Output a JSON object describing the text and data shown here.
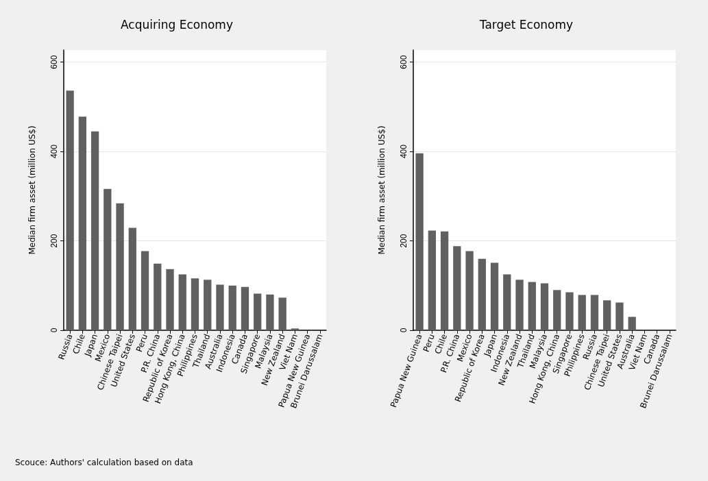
{
  "chart_data": [
    {
      "type": "bar",
      "title": "Acquiring Economy",
      "ylabel": "Median firm asset (million US$)",
      "categories": [
        "Russia",
        "Chile",
        "Japan",
        "Mexico",
        "Chinese Taipei",
        "United States",
        "Peru",
        "P.R. China",
        "Republic of Korea",
        "Hong Kong, China",
        "Philippines",
        "Thailand",
        "Australia",
        "Indonesia",
        "Canada",
        "Singapore",
        "Malaysia",
        "New Zealand",
        "Viet Nam",
        "Papua New Guinea",
        "Brunei Darussalam"
      ],
      "values": [
        536,
        478,
        445,
        316,
        284,
        229,
        177,
        149,
        137,
        125,
        116,
        113,
        102,
        100,
        97,
        82,
        80,
        73,
        4,
        0,
        0
      ],
      "color": "#606060",
      "ylim": [
        0,
        627
      ],
      "yticks": [
        0,
        200,
        400,
        600
      ],
      "grid": "y",
      "annotations": [
        "Scouce: Authors' calculation based on data"
      ]
    },
    {
      "type": "bar",
      "title": "Target Economy",
      "ylabel": "Median firm asset (million US$)",
      "categories": [
        "Papua New Guinea",
        "Peru",
        "Chile",
        "P.R. China",
        "Mexico",
        "Republic of Korea",
        "Japan",
        "Indonesia",
        "New Zealand",
        "Thailand",
        "Malaysia",
        "Hong Kong, China",
        "Singapore",
        "Philippines",
        "Russia",
        "Chinese Taipei",
        "United States",
        "Australia",
        "Viet Nam",
        "Canada",
        "Brunei Darussalam"
      ],
      "values": [
        396,
        223,
        221,
        188,
        177,
        160,
        151,
        125,
        113,
        108,
        105,
        90,
        85,
        79,
        79,
        67,
        62,
        30,
        0,
        0,
        0
      ],
      "color": "#606060",
      "ylim": [
        0,
        627
      ],
      "yticks": [
        0,
        200,
        400,
        600
      ],
      "grid": "y"
    }
  ]
}
